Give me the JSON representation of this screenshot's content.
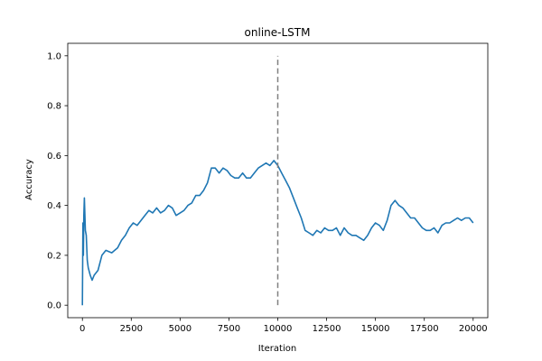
{
  "chart_data": {
    "type": "line",
    "title": "online-LSTM",
    "xlabel": "Iteration",
    "ylabel": "Accuracy",
    "xlim": [
      -750,
      20750
    ],
    "ylim": [
      -0.05,
      1.05
    ],
    "xticks": [
      0,
      2500,
      5000,
      7500,
      10000,
      12500,
      15000,
      17500,
      20000
    ],
    "yticks": [
      0.0,
      0.2,
      0.4,
      0.6,
      0.8,
      1.0
    ],
    "xtick_labels": [
      "0",
      "2500",
      "5000",
      "7500",
      "10000",
      "12500",
      "15000",
      "17500",
      "20000"
    ],
    "ytick_labels": [
      "0.0",
      "0.2",
      "0.4",
      "0.6",
      "0.8",
      "1.0"
    ],
    "grid": false,
    "series": [
      {
        "color": "#1f77b4",
        "x": [
          0,
          25,
          50,
          75,
          100,
          150,
          200,
          250,
          300,
          400,
          500,
          600,
          800,
          1000,
          1200,
          1500,
          1800,
          2000,
          2200,
          2400,
          2600,
          2800,
          3000,
          3200,
          3400,
          3600,
          3800,
          4000,
          4200,
          4400,
          4600,
          4800,
          5000,
          5200,
          5400,
          5600,
          5800,
          6000,
          6200,
          6400,
          6600,
          6800,
          7000,
          7200,
          7400,
          7600,
          7800,
          8000,
          8200,
          8400,
          8600,
          8800,
          9000,
          9200,
          9400,
          9600,
          9800,
          10000,
          10200,
          10400,
          10600,
          10800,
          11000,
          11200,
          11400,
          11600,
          11800,
          12000,
          12200,
          12400,
          12600,
          12800,
          13000,
          13200,
          13400,
          13600,
          13800,
          14000,
          14200,
          14400,
          14600,
          14800,
          15000,
          15200,
          15400,
          15600,
          15800,
          16000,
          16200,
          16400,
          16600,
          16800,
          17000,
          17200,
          17400,
          17600,
          17800,
          18000,
          18200,
          18400,
          18600,
          18800,
          19000,
          19200,
          19400,
          19600,
          19800,
          20000
        ],
        "y": [
          0.0,
          0.33,
          0.2,
          0.36,
          0.43,
          0.3,
          0.28,
          0.18,
          0.15,
          0.12,
          0.1,
          0.12,
          0.14,
          0.2,
          0.22,
          0.21,
          0.23,
          0.26,
          0.28,
          0.31,
          0.33,
          0.32,
          0.34,
          0.36,
          0.38,
          0.37,
          0.39,
          0.37,
          0.38,
          0.4,
          0.39,
          0.36,
          0.37,
          0.38,
          0.4,
          0.41,
          0.44,
          0.44,
          0.46,
          0.49,
          0.55,
          0.55,
          0.53,
          0.55,
          0.54,
          0.52,
          0.51,
          0.51,
          0.53,
          0.51,
          0.51,
          0.53,
          0.55,
          0.56,
          0.57,
          0.56,
          0.58,
          0.56,
          0.53,
          0.5,
          0.47,
          0.43,
          0.39,
          0.35,
          0.3,
          0.29,
          0.28,
          0.3,
          0.29,
          0.31,
          0.3,
          0.3,
          0.31,
          0.28,
          0.31,
          0.29,
          0.28,
          0.28,
          0.27,
          0.26,
          0.28,
          0.31,
          0.33,
          0.32,
          0.3,
          0.34,
          0.4,
          0.42,
          0.4,
          0.39,
          0.37,
          0.35,
          0.35,
          0.33,
          0.31,
          0.3,
          0.3,
          0.31,
          0.29,
          0.32,
          0.33,
          0.33,
          0.34,
          0.35,
          0.34,
          0.35,
          0.35,
          0.33
        ]
      }
    ],
    "vline": {
      "x": 10000,
      "y": [
        0.0,
        1.0
      ],
      "style": "dashed",
      "color": "#808080"
    }
  }
}
